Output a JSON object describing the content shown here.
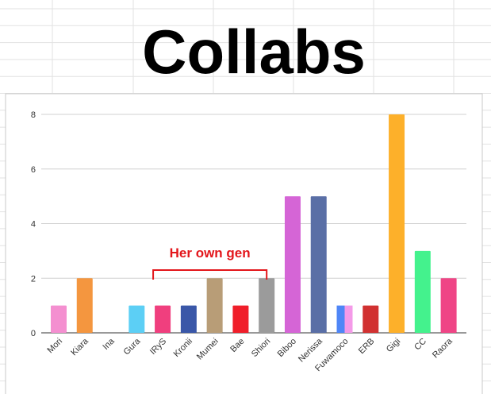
{
  "chart_data": {
    "type": "bar",
    "title": "Collabs",
    "categories": [
      "Mori",
      "Kiara",
      "Ina",
      "Gura",
      "IRyS",
      "Kronii",
      "Mumei",
      "Bae",
      "Shiori",
      "Biboo",
      "Nerissa",
      "Fuwamoco",
      "ERB",
      "Gigi",
      "CC",
      "Raora"
    ],
    "values": [
      1,
      2,
      0,
      1,
      1,
      1,
      2,
      1,
      2,
      5,
      5,
      1,
      1,
      8,
      3,
      2
    ],
    "colors": [
      "#f48fd0",
      "#f4963f",
      "#cccccc",
      "#5ccff5",
      "#f03f7e",
      "#3a57a8",
      "#b89d77",
      "#f01e2a",
      "#9b9b9b",
      "#d565d6",
      "#5a6fa6",
      [
        "#4f86f7",
        "#f49ae8"
      ],
      "#d13131",
      "#fdb02a",
      "#44f28d",
      "#ef4586"
    ],
    "ylim": [
      0,
      8
    ],
    "yticks": [
      0,
      2,
      4,
      6,
      8
    ],
    "grid": true,
    "annotation": "Her own gen"
  }
}
